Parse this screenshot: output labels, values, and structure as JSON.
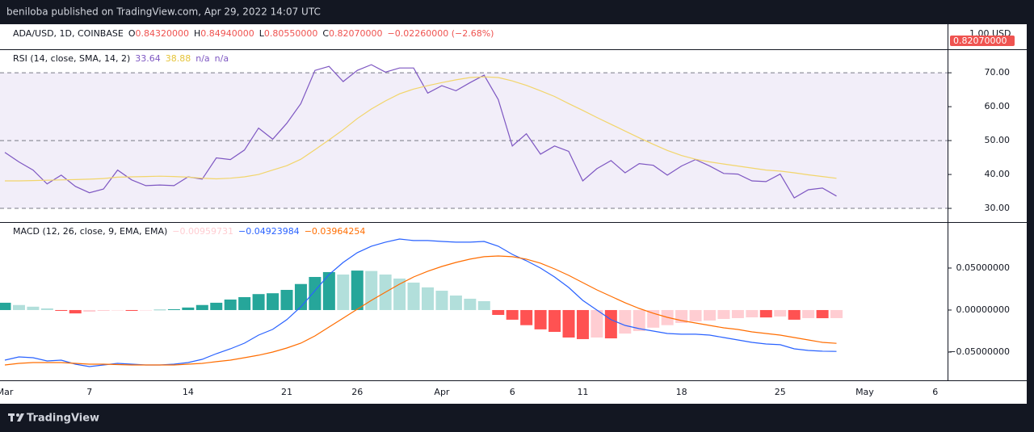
{
  "header": {
    "text": "beniloba published on TradingView.com, Apr 29, 2022 14:07 UTC"
  },
  "footer": {
    "brand": "TradingView"
  },
  "price_pane": {
    "symbol": "ADA/USD, 1D, COINBASE",
    "ohlc": [
      [
        "O",
        "0.84320000"
      ],
      [
        "H",
        "0.84940000"
      ],
      [
        "L",
        "0.80550000"
      ],
      [
        "C",
        "0.82070000"
      ]
    ],
    "change": "−0.02260000 (−2.68%)",
    "axis_label": "1.00 USD",
    "last_price": "0.82070000",
    "color": "#ef5350"
  },
  "chart_data": [
    {
      "type": "rsi",
      "title": "RSI (14, close, SMA, 14, 2)",
      "legend_values": [
        {
          "text": "33.64",
          "color": "#7e57c2"
        },
        {
          "text": "38.88",
          "color": "#e5c43a"
        },
        {
          "text": "n/a",
          "color": "#7e57c2"
        },
        {
          "text": "n/a",
          "color": "#7e57c2"
        }
      ],
      "ylim": [
        26.2,
        76.7
      ],
      "yticks": [
        {
          "value": 30,
          "label": "30.00"
        },
        {
          "value": 40,
          "label": "40.00"
        },
        {
          "value": 50,
          "label": "50.00"
        },
        {
          "value": 60,
          "label": "60.00"
        },
        {
          "value": 70,
          "label": "70.00"
        }
      ],
      "bands": {
        "upper": 70,
        "middle": 50,
        "lower": 30,
        "fill": "rgba(126,87,194,0.1)",
        "line": "#787b86"
      },
      "series": [
        {
          "color": "#7e57c2",
          "values": [
            46.5,
            43.7,
            41.3,
            37.2,
            39.8,
            36.5,
            34.6,
            35.7,
            41.3,
            38.4,
            36.7,
            36.9,
            36.7,
            39.3,
            38.6,
            44.9,
            44.4,
            47.2,
            53.7,
            50.4,
            55.1,
            60.9,
            70.7,
            71.9,
            67.4,
            70.7,
            72.4,
            70.2,
            71.4,
            71.4,
            64.0,
            66.2,
            64.7,
            67.1,
            69.3,
            62.1,
            48.4,
            52.0,
            46.0,
            48.4,
            46.8,
            38.1,
            41.7,
            44.1,
            40.5,
            43.2,
            42.7,
            39.8,
            42.5,
            44.4,
            42.5,
            40.3,
            40.1,
            38.1,
            37.9,
            40.1,
            33.1,
            35.5,
            36.0,
            33.64,
            null,
            null,
            null,
            null,
            null,
            null,
            null
          ]
        },
        {
          "color": "#f2d56b",
          "values": [
            38.1,
            38.1,
            38.2,
            38.3,
            38.4,
            38.5,
            38.6,
            38.8,
            39.2,
            39.3,
            39.4,
            39.5,
            39.4,
            39.2,
            38.9,
            38.7,
            38.9,
            39.3,
            40.0,
            41.3,
            42.6,
            44.5,
            47.3,
            50.2,
            53.2,
            56.5,
            59.3,
            61.7,
            63.8,
            65.2,
            66.2,
            67.1,
            67.9,
            68.6,
            68.8,
            68.6,
            67.6,
            66.3,
            64.7,
            63.0,
            60.9,
            58.9,
            56.8,
            54.8,
            52.8,
            50.8,
            48.9,
            47.1,
            45.6,
            44.5,
            43.7,
            43.1,
            42.5,
            41.9,
            41.3,
            41.0,
            40.5,
            39.9,
            39.4,
            38.88,
            null,
            null,
            null,
            null,
            null,
            null,
            null
          ]
        }
      ]
    },
    {
      "type": "macd",
      "title": "MACD (12, 26, close, 9, EMA, EMA)",
      "legend_values": [
        {
          "text": "−0.00959731",
          "color": "#ffcdd2"
        },
        {
          "text": "−0.04923984",
          "color": "#2962ff"
        },
        {
          "text": "−0.03964254",
          "color": "#ff6d00"
        }
      ],
      "categories": [
        "Mar",
        null,
        null,
        null,
        null,
        null,
        "7",
        null,
        null,
        null,
        null,
        null,
        null,
        "14",
        null,
        null,
        null,
        null,
        null,
        null,
        "21",
        null,
        null,
        null,
        null,
        "26",
        null,
        null,
        null,
        null,
        null,
        "Apr",
        null,
        null,
        null,
        null,
        "6",
        null,
        null,
        null,
        null,
        "11",
        null,
        null,
        null,
        null,
        null,
        null,
        "18",
        null,
        null,
        null,
        null,
        null,
        null,
        "25",
        null,
        null,
        null,
        null,
        null,
        "May",
        null,
        null,
        null,
        null,
        "6"
      ],
      "ylim": [
        -0.0827,
        0.1038
      ],
      "yticks": [
        {
          "value": 0.05,
          "label": "0.05000000"
        },
        {
          "value": 0,
          "label": "0.00000000"
        },
        {
          "value": -0.05,
          "label": "−0.05000000"
        }
      ],
      "histogram": {
        "colors": {
          "grow_above": "#26a69a",
          "fall_above": "#b2dfdb",
          "grow_below": "#ffcdd2",
          "fall_below": "#ff5252"
        },
        "values": [
          0.0087,
          0.006,
          0.004,
          0.002,
          -0.001,
          -0.004,
          -0.002,
          -0.001,
          -0.0005,
          -0.001,
          -0.0003,
          0.0003,
          0.001,
          0.003,
          0.006,
          0.0087,
          0.0125,
          0.0154,
          0.019,
          0.02,
          0.024,
          0.031,
          0.0394,
          0.0452,
          0.0423,
          0.047,
          0.0465,
          0.0423,
          0.0375,
          0.0327,
          0.027,
          0.023,
          0.0173,
          0.0135,
          0.0106,
          -0.0058,
          -0.0115,
          -0.018,
          -0.023,
          -0.026,
          -0.0327,
          -0.0346,
          -0.0327,
          -0.0337,
          -0.028,
          -0.025,
          -0.021,
          -0.018,
          -0.0154,
          -0.0135,
          -0.0125,
          -0.0106,
          -0.0096,
          -0.0087,
          -0.0088,
          -0.0077,
          -0.0115,
          -0.0096,
          -0.0097,
          -0.00959731,
          null,
          null,
          null,
          null,
          null,
          null,
          null
        ]
      },
      "series": [
        {
          "color": "#2962ff",
          "values": [
            -0.0596,
            -0.0558,
            -0.0567,
            -0.0606,
            -0.0596,
            -0.0644,
            -0.0673,
            -0.0654,
            -0.0635,
            -0.0644,
            -0.0654,
            -0.0654,
            -0.0644,
            -0.0625,
            -0.0587,
            -0.0519,
            -0.0462,
            -0.0394,
            -0.0298,
            -0.023,
            -0.0115,
            0.0038,
            0.023,
            0.0423,
            0.0567,
            0.0683,
            0.076,
            0.0808,
            0.0846,
            0.0827,
            0.0827,
            0.0817,
            0.0808,
            0.0808,
            0.0817,
            0.076,
            0.0663,
            0.0587,
            0.05,
            0.0394,
            0.0269,
            0.0115,
            0.0,
            -0.0115,
            -0.0183,
            -0.0221,
            -0.025,
            -0.0279,
            -0.0288,
            -0.0288,
            -0.0298,
            -0.0327,
            -0.0356,
            -0.0385,
            -0.0404,
            -0.0413,
            -0.0462,
            -0.0481,
            -0.049,
            -0.04923984,
            null,
            null,
            null,
            null,
            null,
            null,
            null
          ]
        },
        {
          "color": "#ff6d00",
          "values": [
            -0.0654,
            -0.0635,
            -0.0625,
            -0.0625,
            -0.0625,
            -0.0635,
            -0.0644,
            -0.0644,
            -0.0649,
            -0.0654,
            -0.0654,
            -0.0654,
            -0.0654,
            -0.0644,
            -0.0635,
            -0.0615,
            -0.0596,
            -0.0567,
            -0.0538,
            -0.05,
            -0.0452,
            -0.0394,
            -0.0308,
            -0.0202,
            -0.0096,
            0.001,
            0.0115,
            0.0212,
            0.0308,
            0.0394,
            0.0462,
            0.0519,
            0.0567,
            0.0606,
            0.0635,
            0.0644,
            0.0635,
            0.0606,
            0.0558,
            0.049,
            0.0413,
            0.0327,
            0.024,
            0.0163,
            0.0087,
            0.0019,
            -0.0038,
            -0.0087,
            -0.0125,
            -0.0154,
            -0.0183,
            -0.0212,
            -0.0231,
            -0.026,
            -0.0279,
            -0.0298,
            -0.0327,
            -0.0356,
            -0.0385,
            -0.03964254,
            null,
            null,
            null,
            null,
            null,
            null,
            null
          ]
        }
      ]
    }
  ]
}
